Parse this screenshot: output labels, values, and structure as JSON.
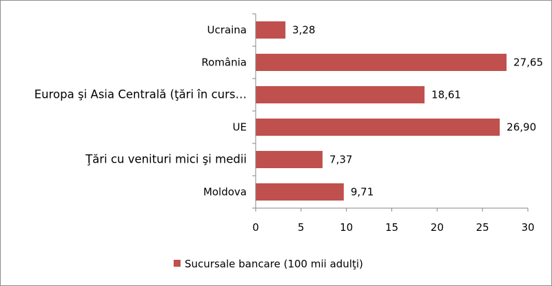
{
  "chart_data": {
    "type": "bar",
    "orientation": "horizontal",
    "categories": [
      "Ucraina",
      "România",
      "Europa şi Asia Centrală (ţări în curs…",
      "UE",
      "Ţări cu venituri mici şi medii",
      "Moldova"
    ],
    "series": [
      {
        "name": "Sucursale bancare (100 mii adulţi)",
        "values": [
          3.28,
          27.65,
          18.61,
          26.9,
          7.37,
          9.71
        ],
        "value_labels": [
          "3,28",
          "27,65",
          "18,61",
          "26,90",
          "7,37",
          "9,71"
        ],
        "color": "#c0504d"
      }
    ],
    "xlim": [
      0,
      30
    ],
    "xticks": [
      0,
      5,
      10,
      15,
      20,
      25,
      30
    ],
    "grid": false,
    "legend_position": "bottom"
  }
}
